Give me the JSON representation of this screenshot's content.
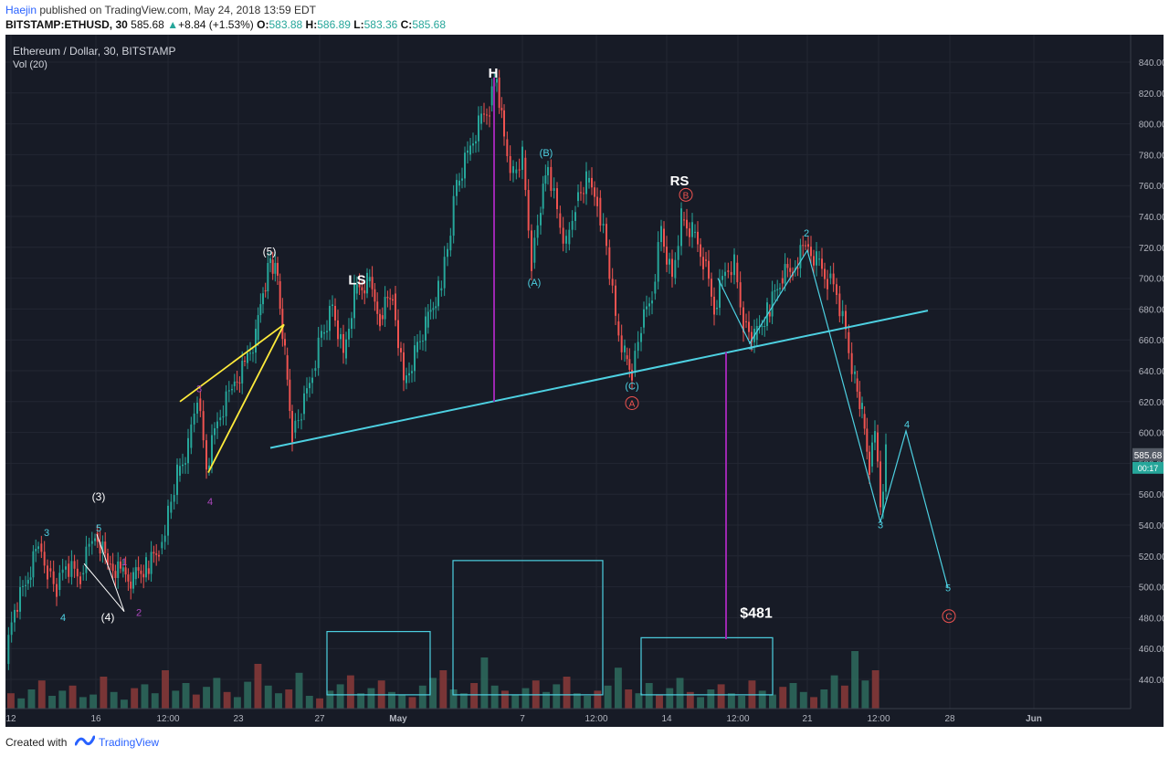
{
  "header": {
    "user": "Haejin",
    "published_text": "published on TradingView.com, May 24, 2018 13:59 EDT",
    "symbol": "BITSTAMP:ETHUSD, 30",
    "last": "585.68",
    "change": "+8.84 (+1.53%)",
    "o_label": "O:",
    "o_value": "583.88",
    "h_label": "H:",
    "h_value": "586.89",
    "l_label": "L:",
    "l_value": "583.36",
    "c_label": "C:",
    "c_value": "585.68"
  },
  "footer": {
    "created_with": "Created with",
    "brand": "TradingView"
  },
  "chart_data": {
    "type": "candlestick",
    "title": "Ethereum / Dollar, 30, BITSTAMP",
    "volume_label": "Vol (20)",
    "x_tick_labels": [
      "12",
      "16",
      "12:00",
      "23",
      "27",
      "May",
      "7",
      "12:00",
      "14",
      "12:00",
      "21",
      "12:00",
      "28",
      "Jun"
    ],
    "y_tick_labels": [
      "440.00",
      "460.00",
      "480.00",
      "500.00",
      "520.00",
      "540.00",
      "560.00",
      "580.00",
      "600.00",
      "620.00",
      "640.00",
      "660.00",
      "680.00",
      "700.00",
      "720.00",
      "740.00",
      "760.00",
      "780.00",
      "800.00",
      "820.00",
      "840.00"
    ],
    "ylim": [
      424,
      852
    ],
    "price_series": [
      {
        "t": 0,
        "p": 450
      },
      {
        "t": 10,
        "p": 485
      },
      {
        "t": 22,
        "p": 502
      },
      {
        "t": 36,
        "p": 528
      },
      {
        "t": 46,
        "p": 512
      },
      {
        "t": 56,
        "p": 498
      },
      {
        "t": 66,
        "p": 515
      },
      {
        "t": 82,
        "p": 508
      },
      {
        "t": 98,
        "p": 535
      },
      {
        "t": 112,
        "p": 515
      },
      {
        "t": 126,
        "p": 510
      },
      {
        "t": 140,
        "p": 505
      },
      {
        "t": 154,
        "p": 512
      },
      {
        "t": 168,
        "p": 525
      },
      {
        "t": 178,
        "p": 548
      },
      {
        "t": 188,
        "p": 572
      },
      {
        "t": 200,
        "p": 590
      },
      {
        "t": 210,
        "p": 622
      },
      {
        "t": 220,
        "p": 576
      },
      {
        "t": 232,
        "p": 608
      },
      {
        "t": 248,
        "p": 630
      },
      {
        "t": 262,
        "p": 645
      },
      {
        "t": 274,
        "p": 660
      },
      {
        "t": 282,
        "p": 692
      },
      {
        "t": 290,
        "p": 712
      },
      {
        "t": 298,
        "p": 698
      },
      {
        "t": 306,
        "p": 650
      },
      {
        "t": 314,
        "p": 600
      },
      {
        "t": 324,
        "p": 612
      },
      {
        "t": 336,
        "p": 640
      },
      {
        "t": 346,
        "p": 664
      },
      {
        "t": 358,
        "p": 682
      },
      {
        "t": 370,
        "p": 648
      },
      {
        "t": 382,
        "p": 690
      },
      {
        "t": 396,
        "p": 698
      },
      {
        "t": 410,
        "p": 676
      },
      {
        "t": 424,
        "p": 690
      },
      {
        "t": 436,
        "p": 632
      },
      {
        "t": 448,
        "p": 652
      },
      {
        "t": 460,
        "p": 668
      },
      {
        "t": 474,
        "p": 692
      },
      {
        "t": 484,
        "p": 718
      },
      {
        "t": 494,
        "p": 760
      },
      {
        "t": 506,
        "p": 780
      },
      {
        "t": 518,
        "p": 800
      },
      {
        "t": 530,
        "p": 812
      },
      {
        "t": 538,
        "p": 830
      },
      {
        "t": 546,
        "p": 790
      },
      {
        "t": 556,
        "p": 768
      },
      {
        "t": 566,
        "p": 778
      },
      {
        "t": 576,
        "p": 710
      },
      {
        "t": 586,
        "p": 745
      },
      {
        "t": 594,
        "p": 772
      },
      {
        "t": 604,
        "p": 742
      },
      {
        "t": 614,
        "p": 722
      },
      {
        "t": 624,
        "p": 750
      },
      {
        "t": 636,
        "p": 762
      },
      {
        "t": 648,
        "p": 752
      },
      {
        "t": 658,
        "p": 720
      },
      {
        "t": 668,
        "p": 672
      },
      {
        "t": 678,
        "p": 650
      },
      {
        "t": 686,
        "p": 640
      },
      {
        "t": 696,
        "p": 668
      },
      {
        "t": 708,
        "p": 690
      },
      {
        "t": 718,
        "p": 732
      },
      {
        "t": 730,
        "p": 700
      },
      {
        "t": 740,
        "p": 738
      },
      {
        "t": 752,
        "p": 730
      },
      {
        "t": 764,
        "p": 712
      },
      {
        "t": 776,
        "p": 680
      },
      {
        "t": 788,
        "p": 705
      },
      {
        "t": 798,
        "p": 710
      },
      {
        "t": 808,
        "p": 672
      },
      {
        "t": 820,
        "p": 660
      },
      {
        "t": 834,
        "p": 678
      },
      {
        "t": 848,
        "p": 700
      },
      {
        "t": 862,
        "p": 705
      },
      {
        "t": 876,
        "p": 722
      },
      {
        "t": 888,
        "p": 712
      },
      {
        "t": 900,
        "p": 700
      },
      {
        "t": 910,
        "p": 690
      },
      {
        "t": 920,
        "p": 665
      },
      {
        "t": 930,
        "p": 635
      },
      {
        "t": 938,
        "p": 612
      },
      {
        "t": 946,
        "p": 578
      },
      {
        "t": 952,
        "p": 600
      },
      {
        "t": 958,
        "p": 548
      },
      {
        "t": 964,
        "p": 586
      }
    ],
    "volume_series": [
      12,
      8,
      15,
      22,
      10,
      14,
      18,
      9,
      11,
      25,
      13,
      7,
      16,
      19,
      12,
      30,
      14,
      20,
      11,
      17,
      24,
      13,
      9,
      21,
      35,
      18,
      12,
      15,
      28,
      10,
      8,
      14,
      19,
      26,
      12,
      16,
      22,
      13,
      11,
      9,
      18,
      24,
      30,
      15,
      12,
      20,
      40,
      18,
      14,
      11,
      16,
      22,
      13,
      19,
      25,
      12,
      10,
      14,
      18,
      32,
      15,
      12,
      20,
      11,
      16,
      24,
      13,
      9,
      15,
      19,
      12,
      10,
      22,
      14,
      11,
      17,
      20,
      13,
      9,
      15,
      26,
      18,
      45,
      22,
      30
    ],
    "annotations": [
      {
        "text": "H",
        "color": "#ffffff",
        "x": 534,
        "y": 830,
        "size": 15,
        "bold": true
      },
      {
        "text": "LS",
        "color": "#ffffff",
        "x": 385,
        "y": 696,
        "size": 15,
        "bold": true
      },
      {
        "text": "RS",
        "color": "#ffffff",
        "x": 738,
        "y": 760,
        "size": 15,
        "bold": true
      },
      {
        "text": "(5)",
        "color": "#ffffff",
        "x": 289,
        "y": 715,
        "size": 12
      },
      {
        "text": "(3)",
        "color": "#ffffff",
        "x": 102,
        "y": 556,
        "size": 12
      },
      {
        "text": "(4)",
        "color": "#ffffff",
        "x": 112,
        "y": 478,
        "size": 12
      },
      {
        "text": "5",
        "color": "#4dd0e1",
        "x": 102,
        "y": 536,
        "size": 11
      },
      {
        "text": "3",
        "color": "#4dd0e1",
        "x": 45,
        "y": 533,
        "size": 11
      },
      {
        "text": "4",
        "color": "#4dd0e1",
        "x": 63,
        "y": 478,
        "size": 11
      },
      {
        "text": "1",
        "color": "#ab47bc",
        "x": 130,
        "y": 514,
        "size": 11
      },
      {
        "text": "2",
        "color": "#ab47bc",
        "x": 146,
        "y": 481,
        "size": 11
      },
      {
        "text": "3",
        "color": "#ab47bc",
        "x": 212,
        "y": 626,
        "size": 11
      },
      {
        "text": "4",
        "color": "#ab47bc",
        "x": 224,
        "y": 553,
        "size": 11
      },
      {
        "text": "(B)",
        "color": "#4dd0e1",
        "x": 592,
        "y": 779,
        "size": 11
      },
      {
        "text": "(A)",
        "color": "#4dd0e1",
        "x": 579,
        "y": 695,
        "size": 11
      },
      {
        "text": "(C)",
        "color": "#4dd0e1",
        "x": 686,
        "y": 628,
        "size": 11
      },
      {
        "text": "1",
        "color": "#4dd0e1",
        "x": 816,
        "y": 654,
        "size": 11
      },
      {
        "text": "2",
        "color": "#4dd0e1",
        "x": 877,
        "y": 727,
        "size": 11
      },
      {
        "text": "3",
        "color": "#4dd0e1",
        "x": 958,
        "y": 538,
        "size": 11
      },
      {
        "text": "4",
        "color": "#4dd0e1",
        "x": 987,
        "y": 603,
        "size": 11
      },
      {
        "text": "5",
        "color": "#4dd0e1",
        "x": 1032,
        "y": 497,
        "size": 11
      },
      {
        "text": "$481",
        "color": "#ffffff",
        "x": 822,
        "y": 480,
        "size": 16,
        "bold": true
      }
    ],
    "circled_labels": [
      {
        "text": "A",
        "color": "#ef5350",
        "x": 686,
        "y": 619
      },
      {
        "text": "B",
        "color": "#ef5350",
        "x": 745,
        "y": 754
      },
      {
        "text": "C",
        "color": "#ef5350",
        "x": 1033,
        "y": 481
      }
    ],
    "neckline": [
      {
        "x": 290,
        "p": 590
      },
      {
        "x": 1010,
        "p": 679
      }
    ],
    "head_measure": {
      "x": 535,
      "p_top": 830,
      "p_bottom": 620
    },
    "target_measure": {
      "x": 789,
      "p_top": 652,
      "p_bottom": 466
    },
    "wave_path": [
      {
        "x": 815,
        "p": 658
      },
      {
        "x": 878,
        "p": 718
      },
      {
        "x": 958,
        "p": 542
      },
      {
        "x": 986,
        "p": 601
      },
      {
        "x": 1032,
        "p": 499
      }
    ],
    "abc_path": [
      {
        "x": 780,
        "p": 700
      },
      {
        "x": 815,
        "p": 658
      }
    ],
    "yellow_wedge": [
      [
        {
          "x": 191,
          "p": 620
        },
        {
          "x": 305,
          "p": 670
        }
      ],
      [
        {
          "x": 222,
          "p": 574
        },
        {
          "x": 305,
          "p": 670
        }
      ]
    ],
    "white_wedge": [
      [
        {
          "x": 100,
          "p": 534
        },
        {
          "x": 130,
          "p": 484
        }
      ],
      [
        {
          "x": 86,
          "p": 515
        },
        {
          "x": 130,
          "p": 484
        }
      ]
    ],
    "boxes": [
      {
        "x1": 352,
        "x2": 465,
        "p_top": 471,
        "p_bot": 430
      },
      {
        "x1": 490,
        "x2": 654,
        "p_top": 517,
        "p_bot": 430
      },
      {
        "x1": 696,
        "x2": 840,
        "p_top": 467,
        "p_bot": 430
      }
    ],
    "grid": true,
    "price_tag": "585.68",
    "countdown_tag": "00:17"
  }
}
